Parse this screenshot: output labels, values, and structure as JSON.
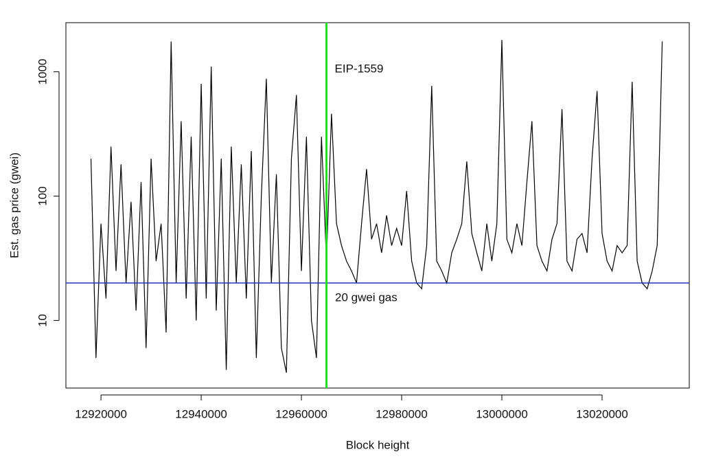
{
  "chart_data": {
    "type": "line",
    "x_label": "Block height",
    "y_label": "Est. gas price (gwei)",
    "log_y": true,
    "color": "#000000",
    "x": [
      12918000,
      12919000,
      12920000,
      12921000,
      12922000,
      12923000,
      12924000,
      12925000,
      12926000,
      12927000,
      12928000,
      12929000,
      12930000,
      12931000,
      12932000,
      12933000,
      12934000,
      12935000,
      12936000,
      12937000,
      12938000,
      12939000,
      12940000,
      12941000,
      12942000,
      12943000,
      12944000,
      12945000,
      12946000,
      12947000,
      12948000,
      12949000,
      12950000,
      12951000,
      12952000,
      12953000,
      12954000,
      12955000,
      12956000,
      12957000,
      12958000,
      12959000,
      12960000,
      12961000,
      12962000,
      12963000,
      12964000,
      12965000,
      12966000,
      12967000,
      12968000,
      12969000,
      12970000,
      12971000,
      12972000,
      12973000,
      12974000,
      12975000,
      12976000,
      12977000,
      12978000,
      12979000,
      12980000,
      12981000,
      12982000,
      12983000,
      12984000,
      12985000,
      12986000,
      12987000,
      12988000,
      12989000,
      12990000,
      12991000,
      12992000,
      12993000,
      12994000,
      12995000,
      12996000,
      12997000,
      12998000,
      12999000,
      13000000,
      13001000,
      13002000,
      13003000,
      13004000,
      13005000,
      13006000,
      13007000,
      13008000,
      13009000,
      13010000,
      13011000,
      13012000,
      13013000,
      13014000,
      13015000,
      13016000,
      13017000,
      13018000,
      13019000,
      13020000,
      13021000,
      13022000,
      13023000,
      13024000,
      13025000,
      13026000,
      13027000,
      13028000,
      13029000,
      13030000,
      13031000,
      13032000
    ],
    "values": [
      200,
      5,
      60,
      15,
      250,
      25,
      180,
      20,
      90,
      12,
      130,
      6,
      200,
      30,
      60,
      8,
      1750,
      20,
      400,
      15,
      300,
      10,
      800,
      15,
      1100,
      12,
      200,
      4,
      250,
      20,
      180,
      15,
      230,
      5,
      100,
      880,
      20,
      150,
      6,
      3.8,
      200,
      650,
      25,
      300,
      10,
      5,
      300,
      30,
      460,
      60,
      40,
      30,
      25,
      20,
      60,
      165,
      45,
      60,
      35,
      70,
      40,
      55,
      40,
      110,
      30,
      20,
      18,
      40,
      770,
      30,
      25,
      20,
      35,
      45,
      60,
      190,
      50,
      35,
      25,
      60,
      30,
      60,
      1800,
      45,
      35,
      60,
      40,
      130,
      400,
      40,
      30,
      25,
      45,
      60,
      500,
      30,
      25,
      45,
      50,
      35,
      200,
      700,
      50,
      30,
      25,
      40,
      35,
      40,
      830,
      30,
      20,
      18,
      25,
      40,
      1750
    ],
    "xlim": [
      12913000,
      13037400
    ],
    "ylim": [
      2.86,
      2480
    ],
    "xticks": [
      12920000,
      12940000,
      12960000,
      12980000,
      13000000,
      13020000
    ],
    "yticks": [
      10,
      100,
      1000
    ],
    "vline": {
      "value": 12965000,
      "label": "EIP-1559",
      "color": "#22dd22"
    },
    "hline": {
      "value": 20,
      "label": "20 gwei gas",
      "color": "#2233bb"
    }
  }
}
